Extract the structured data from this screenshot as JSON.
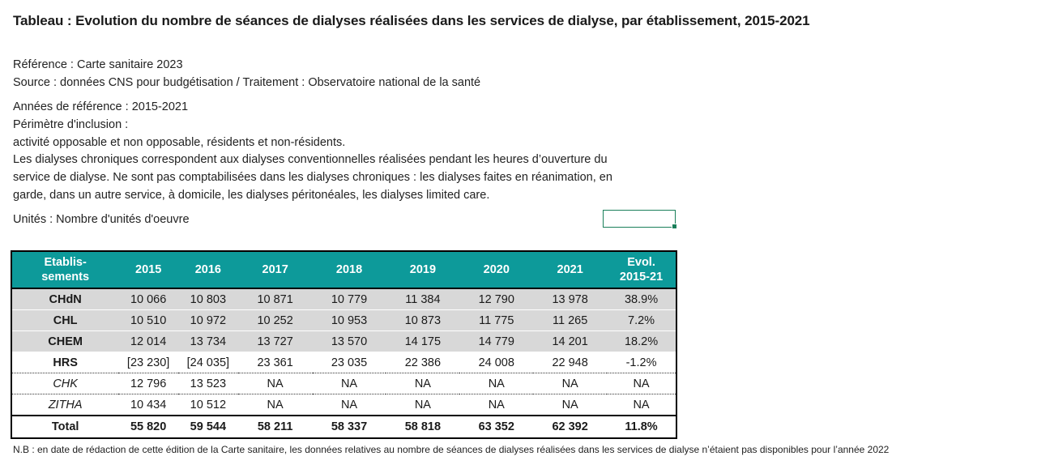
{
  "title": "Tableau : Evolution du nombre de séances de dialyses réalisées dans les services de dialyse, par établissement, 2015-2021",
  "meta": {
    "reference": "Référence : Carte sanitaire 2023",
    "source": "Source : données CNS pour budgétisation / Traitement : Observatoire national de la santé",
    "annees": "Années de référence : 2015-2021",
    "perimetre": "Périmètre d'inclusion :",
    "activite": "activité opposable et non opposable, résidents et non-résidents.",
    "desc1": "Les dialyses chroniques correspondent aux dialyses conventionnelles réalisées pendant les heures d’ouverture du",
    "desc2": "service de dialyse. Ne sont pas comptabilisées dans les dialyses chroniques : les dialyses faites en réanimation, en",
    "desc3": "garde, dans un autre service, à domicile, les dialyses péritonéales, les dialyses limited care.",
    "unites": "Unités : Nombre d'unités d'oeuvre"
  },
  "table": {
    "headers": {
      "est_line1": "Etablis-",
      "est_line2": "sements",
      "y2015": "2015",
      "y2016": "2016",
      "y2017": "2017",
      "y2018": "2018",
      "y2019": "2019",
      "y2020": "2020",
      "y2021": "2021",
      "evol_line1": "Evol.",
      "evol_line2": "2015-21"
    },
    "rows": [
      {
        "name": "CHdN",
        "v2015": "10 066",
        "v2016": "10 803",
        "v2017": "10 871",
        "v2018": "10 779",
        "v2019": "11 384",
        "v2020": "12 790",
        "v2021": "13 978",
        "evol": "38.9%"
      },
      {
        "name": "CHL",
        "v2015": "10 510",
        "v2016": "10 972",
        "v2017": "10 252",
        "v2018": "10 953",
        "v2019": "10 873",
        "v2020": "11 775",
        "v2021": "11 265",
        "evol": "7.2%"
      },
      {
        "name": "CHEM",
        "v2015": "12 014",
        "v2016": "13 734",
        "v2017": "13 727",
        "v2018": "13 570",
        "v2019": "14 175",
        "v2020": "14 779",
        "v2021": "14 201",
        "evol": "18.2%"
      },
      {
        "name": "HRS",
        "v2015": "[23 230]",
        "v2016": "[24 035]",
        "v2017": "23 361",
        "v2018": "23 035",
        "v2019": "22 386",
        "v2020": "24 008",
        "v2021": "22 948",
        "evol": "-1.2%"
      },
      {
        "name": "CHK",
        "v2015": "12 796",
        "v2016": "13 523",
        "v2017": "NA",
        "v2018": "NA",
        "v2019": "NA",
        "v2020": "NA",
        "v2021": "NA",
        "evol": "NA"
      },
      {
        "name": "ZITHA",
        "v2015": "10 434",
        "v2016": "10 512",
        "v2017": "NA",
        "v2018": "NA",
        "v2019": "NA",
        "v2020": "NA",
        "v2021": "NA",
        "evol": "NA"
      }
    ],
    "total": {
      "name": "Total",
      "v2015": "55 820",
      "v2016": "59 544",
      "v2017": "58 211",
      "v2018": "58 337",
      "v2019": "58 818",
      "v2020": "63 352",
      "v2021": "62 392",
      "evol": "11.8%"
    }
  },
  "note": "N.B : en date de rédaction de cette édition de la Carte sanitaire, les données relatives au nombre de séances de dialyses réalisées dans les services de dialyse n’étaient pas disponibles pour l’année 2022",
  "colors": {
    "header_bg": "#0d9a9a",
    "row_gray": "#d8d8d8",
    "selection": "#1a7f5a"
  }
}
